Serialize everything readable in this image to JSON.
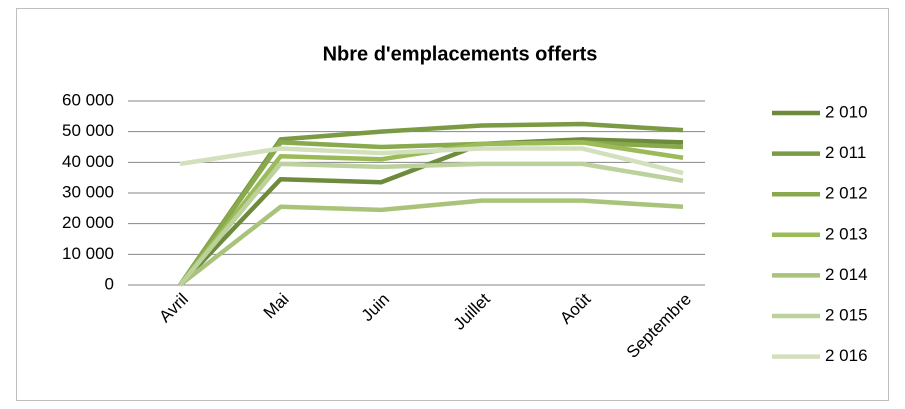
{
  "chart_data": {
    "type": "line",
    "title": "Nbre d'emplacements offerts",
    "categories": [
      "Avril",
      "Mai",
      "Juin",
      "Juillet",
      "Août",
      "Septembre"
    ],
    "series": [
      {
        "name": "2 010",
        "color": "#6e8b3d",
        "values": [
          0,
          34500,
          33500,
          46000,
          47500,
          46500
        ]
      },
      {
        "name": "2 011",
        "color": "#7a9a43",
        "values": [
          0,
          47500,
          50000,
          52000,
          52500,
          50500
        ]
      },
      {
        "name": "2 012",
        "color": "#88a94c",
        "values": [
          0,
          46500,
          45000,
          46000,
          46500,
          45000
        ]
      },
      {
        "name": "2 013",
        "color": "#9bbb59",
        "values": [
          0,
          42000,
          41000,
          46000,
          46500,
          41500
        ]
      },
      {
        "name": "2 014",
        "color": "#a9c47a",
        "values": [
          0,
          25500,
          24500,
          27500,
          27500,
          25500
        ]
      },
      {
        "name": "2 015",
        "color": "#bcd19b",
        "values": [
          0,
          39500,
          38500,
          39500,
          39500,
          34000
        ]
      },
      {
        "name": "2 016",
        "color": "#d3e0bd",
        "values": [
          39500,
          44500,
          43000,
          44500,
          44500,
          36500
        ]
      }
    ],
    "ylim": [
      0,
      60000
    ],
    "yticks": [
      0,
      {
        "value": 10000,
        "label": "10 000"
      },
      {
        "value": 20000,
        "label": "20 000"
      },
      {
        "value": 30000,
        "label": "30 000"
      },
      {
        "value": 40000,
        "label": "40 000"
      },
      {
        "value": 50000,
        "label": "50 000"
      },
      {
        "value": 60000,
        "label": "60 000"
      }
    ],
    "grid": true
  }
}
